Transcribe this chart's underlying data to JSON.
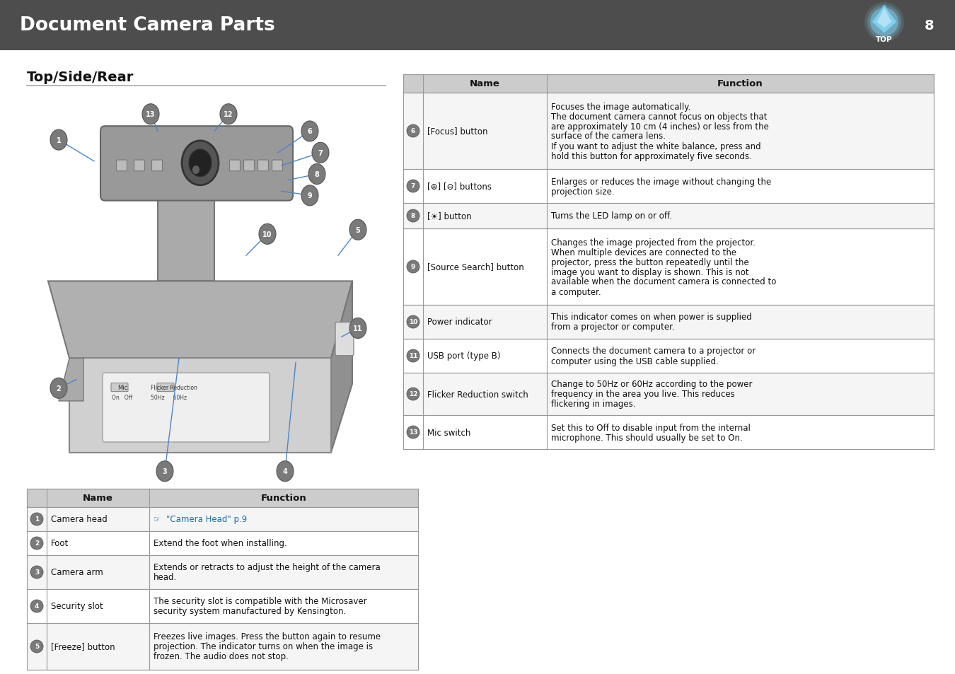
{
  "title": "Document Camera Parts",
  "page_number": "8",
  "section_title": "Top/Side/Rear",
  "header_bg": "#4d4d4d",
  "header_text_color": "#ffffff",
  "table_header_bg": "#cccccc",
  "table_border_color": "#999999",
  "link_color": "#1a6fa6",
  "body_bg": "#ffffff",
  "section_line_color": "#aaaaaa",
  "left_table": {
    "rows": [
      {
        "num": "1",
        "name": "Camera head",
        "function_special": true,
        "function": "\"Camera Head\" p.9"
      },
      {
        "num": "2",
        "name": "Foot",
        "function": "Extend the foot when installing."
      },
      {
        "num": "3",
        "name": "Camera arm",
        "function": "Extends or retracts to adjust the height of the camera\nhead."
      },
      {
        "num": "4",
        "name": "Security slot",
        "function": "The security slot is compatible with the Microsaver\nsecurity system manufactured by Kensington."
      },
      {
        "num": "5",
        "name": "[Freeze] button",
        "function": "Freezes live images. Press the button again to resume\nprojection. The indicator turns on when the image is\nfrozen. The audio does not stop."
      }
    ]
  },
  "right_table": {
    "rows": [
      {
        "num": "6",
        "name": "[Focus] button",
        "function": "Focuses the image automatically.\nThe document camera cannot focus on objects that\nare approximately 10 cm (4 inches) or less from the\nsurface of the camera lens.\nIf you want to adjust the white balance, press and\nhold this button for approximately five seconds."
      },
      {
        "num": "7",
        "name": "[⊕] [⊖] buttons",
        "function": "Enlarges or reduces the image without changing the\nprojection size."
      },
      {
        "num": "8",
        "name": "[☀] button",
        "function": "Turns the LED lamp on or off."
      },
      {
        "num": "9",
        "name": "[Source Search] button",
        "function": "Changes the image projected from the projector.\nWhen multiple devices are connected to the\nprojector, press the button repeatedly until the\nimage you want to display is shown. This is not\navailable when the document camera is connected to\na computer."
      },
      {
        "num": "10",
        "name": "Power indicator",
        "function": "This indicator comes on when power is supplied\nfrom a projector or computer."
      },
      {
        "num": "11",
        "name": "USB port (type B)",
        "function": "Connects the document camera to a projector or\ncomputer using the USB cable supplied."
      },
      {
        "num": "12",
        "name": "Flicker Reduction switch",
        "function": "Change to 50Hz or 60Hz according to the power\nfrequency in the area you live. This reduces\nflickering in images."
      },
      {
        "num": "13",
        "name": "Mic switch",
        "function": "Set this to Off to disable input from the internal\nmicrophone. This should usually be set to On."
      }
    ]
  },
  "right_row_heights": {
    "6": 108,
    "7": 48,
    "8": 36,
    "9": 108,
    "10": 48,
    "11": 48,
    "12": 60,
    "13": 48
  },
  "left_row_heights": {
    "1": 34,
    "2": 34,
    "3": 48,
    "4": 48,
    "5": 66
  }
}
